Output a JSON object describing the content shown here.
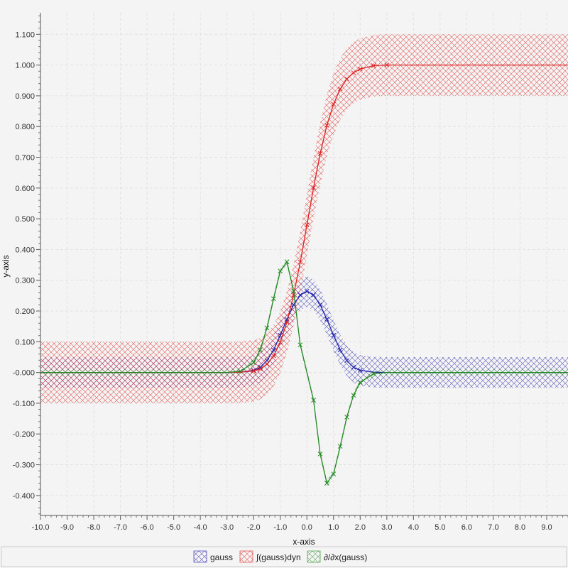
{
  "chart_data": {
    "type": "line",
    "title": "",
    "xlabel": "x-axis",
    "ylabel": "y-axis",
    "xlim": [
      -10.0,
      9.8
    ],
    "ylim": [
      -0.465,
      1.17
    ],
    "grid": true,
    "legend_position": "bottom-center",
    "x_ticks": [
      "-10.0",
      "-9.0",
      "-8.0",
      "-7.0",
      "-6.0",
      "-5.0",
      "-4.0",
      "-3.0",
      "-2.0",
      "-1.0",
      "0.0",
      "1.0",
      "2.0",
      "3.0",
      "4.0",
      "5.0",
      "6.0",
      "7.0",
      "8.0",
      "9.0"
    ],
    "y_ticks": [
      "-0.400",
      "-0.300",
      "-0.200",
      "-0.100",
      "-0.000",
      "0.100",
      "0.200",
      "0.300",
      "0.400",
      "0.500",
      "0.600",
      "0.700",
      "0.800",
      "0.900",
      "1.000",
      "1.100"
    ],
    "series": [
      {
        "name": "gauss",
        "color": "#2222aa",
        "error_band": 0.05,
        "x": [
          -10,
          -3,
          -2.5,
          -2,
          -1.75,
          -1.5,
          -1.25,
          -1,
          -0.75,
          -0.5,
          -0.25,
          0,
          0.25,
          0.5,
          0.75,
          1,
          1.25,
          1.5,
          1.75,
          2,
          2.5,
          3,
          9.8
        ],
        "y": [
          0,
          0,
          0.001,
          0.007,
          0.017,
          0.039,
          0.073,
          0.121,
          0.173,
          0.22,
          0.252,
          0.264,
          0.252,
          0.22,
          0.173,
          0.121,
          0.073,
          0.039,
          0.017,
          0.007,
          0.001,
          0,
          0
        ]
      },
      {
        "name": "∫(gauss)dyn",
        "color": "#dd2222",
        "error_band": 0.1,
        "x": [
          -10,
          -3,
          -2.5,
          -2,
          -1.75,
          -1.5,
          -1.25,
          -1,
          -0.75,
          -0.5,
          -0.25,
          0,
          0.25,
          0.5,
          0.75,
          1,
          1.25,
          1.5,
          1.75,
          2,
          2.5,
          3,
          9.8
        ],
        "y": [
          0,
          0,
          0.001,
          0.005,
          0.012,
          0.027,
          0.054,
          0.098,
          0.164,
          0.252,
          0.359,
          0.48,
          0.601,
          0.712,
          0.804,
          0.873,
          0.922,
          0.955,
          0.975,
          0.987,
          0.998,
          1.0,
          1.0
        ]
      },
      {
        "name": "∂/∂x(gauss)",
        "color": "#228822",
        "error_band": 0.01,
        "x": [
          -10,
          -3,
          -2.5,
          -2,
          -1.75,
          -1.5,
          -1.25,
          -1,
          -0.75,
          -0.5,
          -0.25,
          0,
          0.25,
          0.5,
          0.75,
          1,
          1.25,
          1.5,
          1.75,
          2,
          2.5,
          3,
          9.8
        ],
        "y": [
          0,
          0,
          0.004,
          0.032,
          0.074,
          0.145,
          0.24,
          0.33,
          0.36,
          0.265,
          0.09,
          0,
          -0.09,
          -0.265,
          -0.36,
          -0.33,
          -0.24,
          -0.145,
          -0.074,
          -0.032,
          -0.004,
          0,
          0
        ]
      }
    ]
  }
}
